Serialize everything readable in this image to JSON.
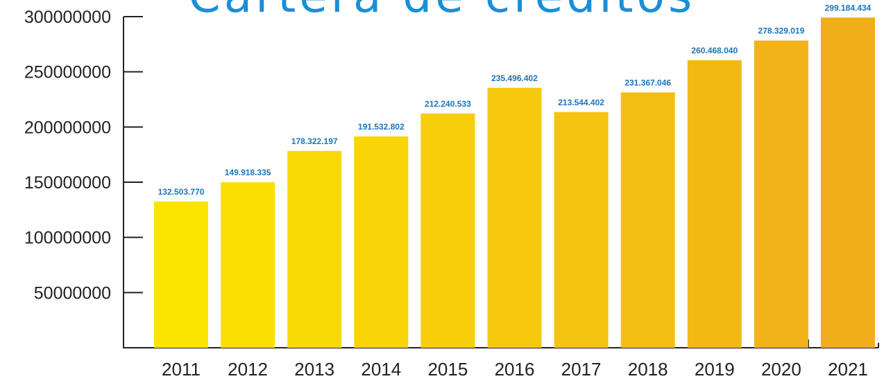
{
  "chart_data": {
    "type": "bar",
    "title": "Cartera de créditos",
    "xlabel": "",
    "ylabel": "",
    "categories": [
      "2011",
      "2012",
      "2013",
      "2014",
      "2015",
      "2016",
      "2017",
      "2018",
      "2019",
      "2020",
      "2021"
    ],
    "values": [
      132503770,
      149918335,
      178322197,
      191532802,
      212240533,
      235496402,
      213544402,
      231367046,
      260468040,
      278329019,
      299184434
    ],
    "value_labels": [
      "132.503.770",
      "149.918.335",
      "178.322.197",
      "191.532.802",
      "212.240.533",
      "235.496.402",
      "213.544.402",
      "231.367.046",
      "260.468.040",
      "278.329.019",
      "299.184.434"
    ],
    "yticks": [
      50000000,
      100000000,
      150000000,
      200000000,
      250000000,
      300000000
    ],
    "ytick_labels": [
      "50000000",
      "100000000",
      "150000000",
      "200000000",
      "250000000",
      "300000000"
    ],
    "ylim": [
      0,
      300000000
    ],
    "grid": false,
    "legend": "none",
    "colors": {
      "bar_start": "#fbe400",
      "bar_end": "#f0ae1a",
      "value_label": "#1b75bb",
      "title": "#1a8fd8",
      "axis": "#222222"
    }
  }
}
